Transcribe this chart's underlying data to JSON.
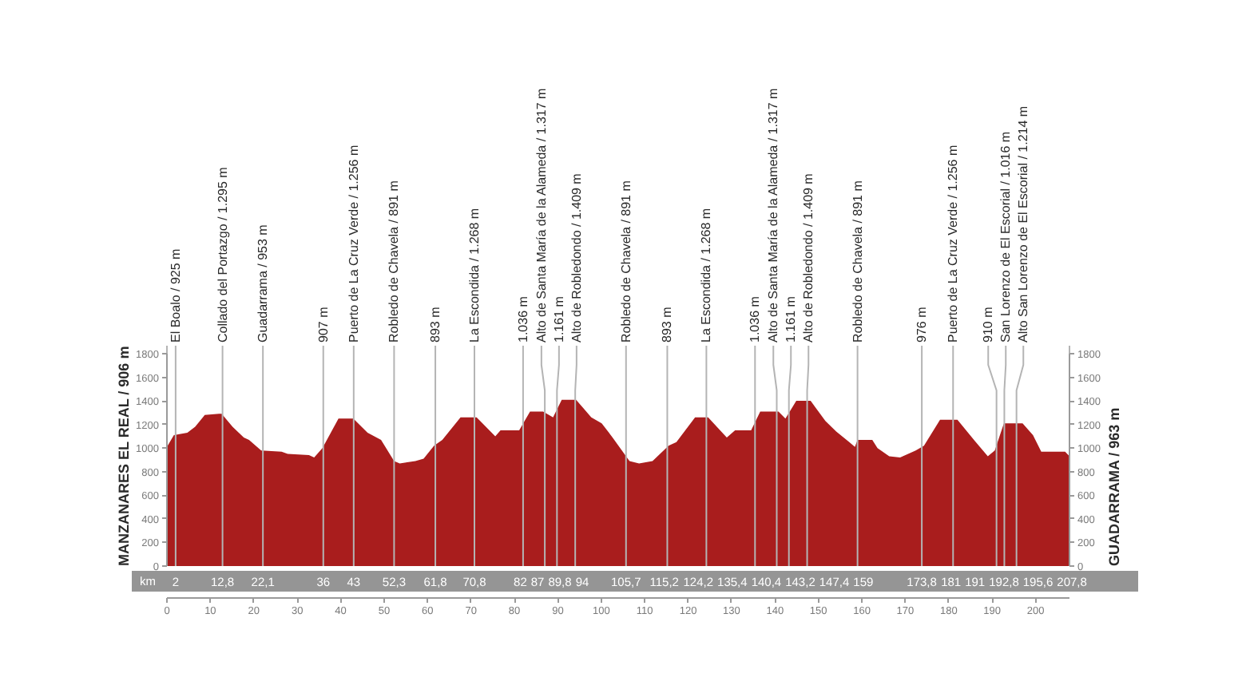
{
  "chart_data": {
    "type": "area",
    "color": "#a91d1d",
    "x": [
      0,
      1.6,
      4.7,
      6.5,
      8.7,
      12,
      12.6,
      15.1,
      17.7,
      18.9,
      21.7,
      26.4,
      27.8,
      32.7,
      33.9,
      35.8,
      39.5,
      42.9,
      46.2,
      49.3,
      52.3,
      53.6,
      57.2,
      59.1,
      61.5,
      63.4,
      67.6,
      71.3,
      75.6,
      76.8,
      81.1,
      83.6,
      86.6,
      88.9,
      90.9,
      94.2,
      97.7,
      100.1,
      102.6,
      106.5,
      108.7,
      111.8,
      115.5,
      117.3,
      121.6,
      124.6,
      128.9,
      130.8,
      134.5,
      136.6,
      140.8,
      142.4,
      144.9,
      148.2,
      151.6,
      154.1,
      157.1,
      158.4,
      159,
      162.4,
      163.6,
      166.3,
      168.8,
      172.4,
      174.3,
      178,
      182,
      186,
      189,
      190.6,
      192.7,
      197,
      199.4,
      201.3,
      206.8,
      207.8
    ],
    "values": [
      1010,
      1110,
      1130,
      1180,
      1280,
      1290,
      1290,
      1180,
      1090,
      1070,
      980,
      970,
      950,
      940,
      920,
      1000,
      1250,
      1250,
      1130,
      1070,
      890,
      870,
      890,
      910,
      1020,
      1070,
      1260,
      1260,
      1100,
      1150,
      1150,
      1310,
      1310,
      1260,
      1410,
      1410,
      1260,
      1210,
      1090,
      890,
      870,
      890,
      1020,
      1050,
      1260,
      1260,
      1090,
      1150,
      1150,
      1310,
      1310,
      1250,
      1400,
      1400,
      1230,
      1140,
      1050,
      1010,
      1070,
      1070,
      1000,
      930,
      920,
      980,
      1020,
      1240,
      1240,
      1060,
      930,
      980,
      1210,
      1210,
      1110,
      970,
      970,
      930
    ],
    "xlim": [
      0,
      207.8
    ],
    "xticks": [
      0,
      10,
      20,
      30,
      40,
      50,
      60,
      70,
      80,
      90,
      100,
      110,
      120,
      130,
      140,
      150,
      160,
      170,
      180,
      190,
      200
    ],
    "ylim": [
      0,
      1800
    ],
    "yticks": [
      0,
      200,
      400,
      600,
      800,
      1000,
      1200,
      1400,
      1600,
      1800
    ],
    "y2lim": [
      0,
      1800
    ],
    "y2ticks": [
      0,
      200,
      400,
      600,
      800,
      1000,
      1200,
      1400,
      1600,
      1800
    ],
    "ylabel": "MANZANARES EL REAL / 906 m",
    "y2label": "GUADARRAMA / 963 m",
    "xlabel": "km",
    "annotations": [
      {
        "text": "2",
        "x": 2,
        "y": 0
      },
      {
        "text": "12,8",
        "x": 12.8,
        "y": 0
      },
      {
        "text": "22,1",
        "x": 22.1,
        "y": 0
      },
      {
        "text": "36",
        "x": 36,
        "y": 0
      },
      {
        "text": "43",
        "x": 43,
        "y": 0
      },
      {
        "text": "52,3",
        "x": 52.3,
        "y": 0
      },
      {
        "text": "61,8",
        "x": 61.8,
        "y": 0
      },
      {
        "text": "70,8",
        "x": 70.8,
        "y": 0
      },
      {
        "text": "82",
        "x": 82,
        "y": 0
      },
      {
        "text": "87",
        "x": 87,
        "y": 0
      },
      {
        "text": "89,8",
        "x": 89.8,
        "y": 0
      },
      {
        "text": "94",
        "x": 94,
        "y": 0
      },
      {
        "text": "105,7",
        "x": 105.7,
        "y": 0
      },
      {
        "text": "115,2",
        "x": 115.2,
        "y": 0
      },
      {
        "text": "124,2",
        "x": 124.2,
        "y": 0
      },
      {
        "text": "135,4",
        "x": 135.4,
        "y": 0
      },
      {
        "text": "140,4",
        "x": 140.4,
        "y": 0
      },
      {
        "text": "143,2",
        "x": 143.2,
        "y": 0
      },
      {
        "text": "147,4",
        "x": 147.4,
        "y": 0
      },
      {
        "text": "159",
        "x": 159,
        "y": 0
      },
      {
        "text": "173,8",
        "x": 173.8,
        "y": 0
      },
      {
        "text": "181",
        "x": 181,
        "y": 0
      },
      {
        "text": "191",
        "x": 191,
        "y": 0
      },
      {
        "text": "192,8",
        "x": 192.8,
        "y": 0
      },
      {
        "text": "195,6",
        "x": 195.6,
        "y": 0
      },
      {
        "text": "207,8",
        "x": 207.8,
        "y": 0
      }
    ],
    "ref_lines": [
      {
        "axis": "x",
        "value": 0,
        "color": "#b4b4b4"
      },
      {
        "axis": "x",
        "value": 2,
        "label": "El Boalo / 925 m",
        "color": "#b4b4b4"
      },
      {
        "axis": "x",
        "value": 12.8,
        "label": "Collado del Portazgo / 1.295 m",
        "color": "#b4b4b4"
      },
      {
        "axis": "x",
        "value": 22.1,
        "label": "Guadarrama / 953 m",
        "color": "#b4b4b4"
      },
      {
        "axis": "x",
        "value": 36,
        "label": "907 m",
        "color": "#b4b4b4"
      },
      {
        "axis": "x",
        "value": 43,
        "label": "Puerto de La Cruz Verde / 1.256 m",
        "color": "#b4b4b4"
      },
      {
        "axis": "x",
        "value": 52.3,
        "label": "Robledo de Chavela / 891 m",
        "color": "#b4b4b4"
      },
      {
        "axis": "x",
        "value": 61.8,
        "label": "893 m",
        "color": "#b4b4b4"
      },
      {
        "axis": "x",
        "value": 70.8,
        "label": "La Escondida / 1.268 m",
        "color": "#b4b4b4"
      },
      {
        "axis": "x",
        "value": 82,
        "label": "1.036 m",
        "color": "#b4b4b4"
      },
      {
        "axis": "x",
        "value": 87,
        "label": "Alto de Santa María de la Alameda / 1.317 m",
        "color": "#b4b4b4"
      },
      {
        "axis": "x",
        "value": 89.8,
        "label": "1.161 m",
        "color": "#b4b4b4"
      },
      {
        "axis": "x",
        "value": 94,
        "label": "Alto de Robledondo / 1.409 m",
        "color": "#b4b4b4"
      },
      {
        "axis": "x",
        "value": 105.7,
        "label": "Robledo de Chavela / 891 m",
        "color": "#b4b4b4"
      },
      {
        "axis": "x",
        "value": 115.2,
        "label": "893 m",
        "color": "#b4b4b4"
      },
      {
        "axis": "x",
        "value": 124.2,
        "label": "La Escondida / 1.268 m",
        "color": "#b4b4b4"
      },
      {
        "axis": "x",
        "value": 135.4,
        "label": "1.036 m",
        "color": "#b4b4b4"
      },
      {
        "axis": "x",
        "value": 140.4,
        "label": "Alto de Santa María de la Alameda / 1.317 m",
        "color": "#b4b4b4"
      },
      {
        "axis": "x",
        "value": 143.2,
        "label": "1.161 m",
        "color": "#b4b4b4"
      },
      {
        "axis": "x",
        "value": 147.4,
        "label": "Alto de Robledondo / 1.409 m",
        "color": "#b4b4b4"
      },
      {
        "axis": "x",
        "value": 159,
        "label": "Robledo de Chavela / 891 m",
        "color": "#b4b4b4"
      },
      {
        "axis": "x",
        "value": 173.8,
        "label": "976 m",
        "color": "#b4b4b4"
      },
      {
        "axis": "x",
        "value": 181,
        "label": "Puerto de La Cruz Verde / 1.256 m",
        "color": "#b4b4b4"
      },
      {
        "axis": "x",
        "value": 191,
        "label": "910 m",
        "color": "#b4b4b4"
      },
      {
        "axis": "x",
        "value": 192.8,
        "label": "San Lorenzo de El Escorial / 1.016 m",
        "color": "#b4b4b4"
      },
      {
        "axis": "x",
        "value": 195.6,
        "label": "Alto San Lorenzo de El Escorial / 1.214 m",
        "color": "#b4b4b4"
      },
      {
        "axis": "x",
        "value": 207.8,
        "color": "#b4b4b4"
      }
    ]
  }
}
